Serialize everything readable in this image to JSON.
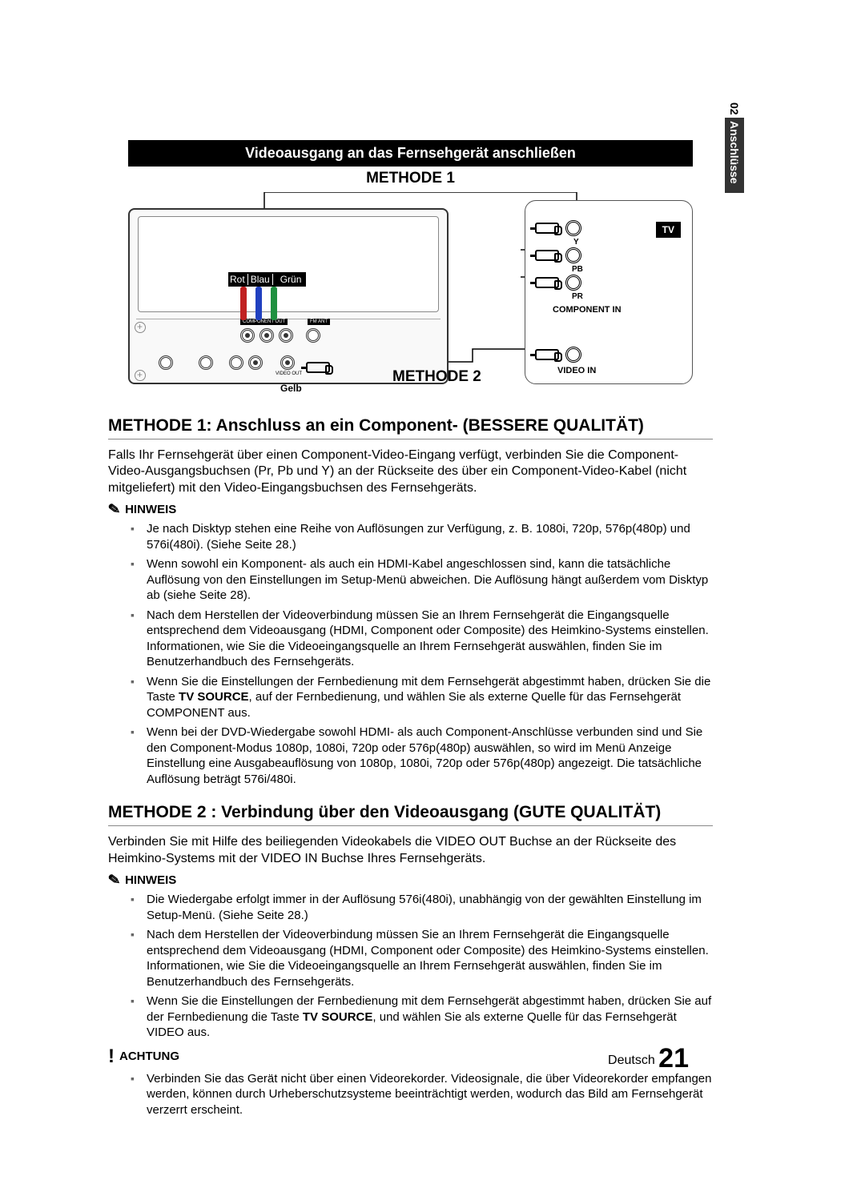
{
  "sideTab": {
    "chapterNum": "02",
    "chapterTitle": "Anschlüsse"
  },
  "blackBand": "Videoausgang an das Fernsehgerät anschließen",
  "methode1Label": "METHODE 1",
  "methode2Label": "METHODE 2",
  "colorLabels": {
    "rot": "Rot",
    "blau": "Blau",
    "gruen": "Grün"
  },
  "yellowLabel": "Gelb",
  "tv": {
    "badge": "TV",
    "y": "Y",
    "pb": "PB",
    "pr": "PR",
    "componentIn": "COMPONENT IN",
    "videoIn": "VIDEO IN"
  },
  "section1": {
    "title": "METHODE 1: Anschluss an ein Component- (BESSERE QUALITÄT)",
    "body": "Falls Ihr Fernsehgerät über einen Component-Video-Eingang verfügt, verbinden Sie die Component-Video-Ausgangsbuchsen (Pr, Pb und Y) an der Rückseite des  über ein Component-Video-Kabel (nicht mitgeliefert) mit den Video-Eingangsbuchsen des Fernsehgeräts.",
    "hinweisLabel": "HINWEIS",
    "notes": [
      "Je nach Disktyp stehen eine Reihe von Auflösungen zur Verfügung, z. B. 1080i, 720p, 576p(480p) und 576i(480i). (Siehe Seite 28.)",
      "Wenn sowohl ein Komponent- als auch ein HDMI-Kabel angeschlossen sind, kann die tatsächliche Auflösung von den Einstellungen im Setup-Menü abweichen. Die Auflösung hängt außerdem vom Disktyp ab (siehe Seite 28).",
      "Nach dem Herstellen der Videoverbindung müssen Sie an Ihrem Fernsehgerät die Eingangsquelle entsprechend dem Videoausgang (HDMI, Component oder Composite) des Heimkino-Systems einstellen. Informationen, wie Sie die Videoeingangsquelle an Ihrem Fernsehgerät auswählen, finden Sie im Benutzerhandbuch des Fernsehgeräts.",
      {
        "pre": "Wenn Sie die Einstellungen der Fernbedienung mit dem Fernsehgerät abgestimmt haben, drücken Sie die Taste ",
        "bold": "TV SOURCE",
        "post": ", auf der Fernbedienung, und wählen Sie als externe Quelle für das Fernsehgerät COMPONENT aus."
      },
      "Wenn bei der DVD-Wiedergabe sowohl HDMI- als auch Component-Anschlüsse verbunden sind und Sie den Component-Modus 1080p, 1080i, 720p oder 576p(480p) auswählen, so wird im Menü Anzeige Einstellung eine Ausgabeauflösung von 1080p, 1080i, 720p oder 576p(480p) angezeigt. Die tatsächliche Auflösung beträgt 576i/480i."
    ]
  },
  "section2": {
    "title": "METHODE 2 : Verbindung über den Videoausgang (GUTE QUALITÄT)",
    "body": "Verbinden Sie mit Hilfe des beiliegenden Videokabels die VIDEO OUT Buchse an der Rückseite des Heimkino-Systems mit der VIDEO IN Buchse Ihres Fernsehgeräts.",
    "hinweisLabel": "HINWEIS",
    "notes": [
      "Die Wiedergabe erfolgt immer in der Auflösung 576i(480i), unabhängig von der gewählten Einstellung im Setup-Menü. (Siehe Seite 28.)",
      "Nach dem Herstellen der Videoverbindung müssen Sie an Ihrem Fernsehgerät die Eingangsquelle entsprechend dem Videoausgang (HDMI, Component oder Composite) des Heimkino-Systems einstellen. Informationen, wie Sie die Videoeingangsquelle an Ihrem Fernsehgerät auswählen, finden Sie im Benutzerhandbuch des Fernsehgeräts.",
      {
        "pre": "Wenn Sie die Einstellungen der Fernbedienung mit dem Fernsehgerät abgestimmt haben, drücken Sie auf der Fernbedienung die Taste ",
        "bold": "TV SOURCE",
        "post": ", und wählen Sie als externe Quelle für das Fernsehgerät VIDEO aus."
      }
    ],
    "achtungLabel": "ACHTUNG",
    "achtungNotes": [
      "Verbinden Sie das Gerät nicht über einen Videorekorder. Videosignale, die über Videorekorder empfangen werden, können durch Urheberschutzsysteme beeinträchtigt werden, wodurch das Bild am Fernsehgerät verzerrt erscheint."
    ]
  },
  "pageFooter": {
    "lang": "Deutsch",
    "num": "21"
  },
  "colors": {
    "rot": "#c02020",
    "blau": "#2040c0",
    "gruen": "#209040",
    "gelb": "#d8c030"
  }
}
